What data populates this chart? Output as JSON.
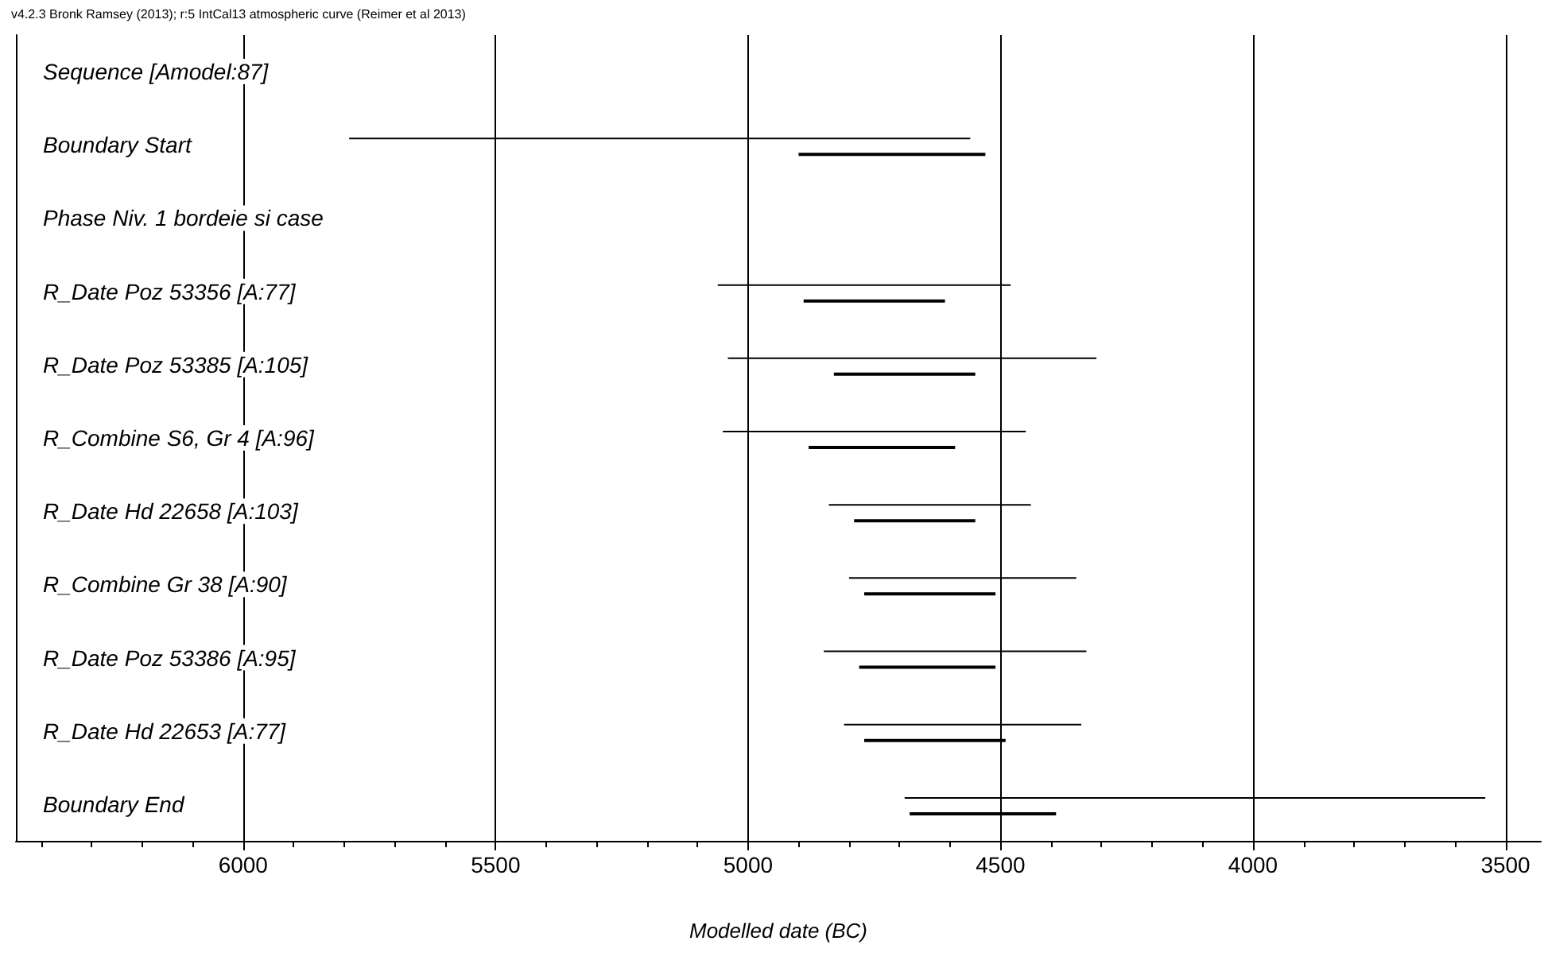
{
  "chart_data": {
    "type": "bar",
    "orientation": "horizontal",
    "annotations": [
      "v4.2.3 Bronk Ramsey (2013); r:5 IntCal13 atmospheric curve (Reimer et al 2013)"
    ],
    "xlabel": "Modelled date (BC)",
    "categories": [
      "Sequence [Amodel:87]",
      "Boundary Start",
      "Phase Niv. 1 bordeie si case",
      "R_Date Poz 53356 [A:77]",
      "R_Date Poz 53385 [A:105]",
      "R_Combine S6, Gr 4 [A:96]",
      "R_Date Hd 22658 [A:103]",
      "R_Combine Gr 38 [A:90]",
      "R_Date Poz 53386 [A:95]",
      "R_Date Hd 22653 [A:77]",
      "Boundary End"
    ],
    "series": [
      {
        "color": "#000000",
        "base": [
          null,
          4560,
          null,
          4480,
          4310,
          4450,
          4440,
          4350,
          4330,
          4340,
          3540
        ],
        "values": [
          null,
          1230,
          null,
          580,
          730,
          600,
          400,
          450,
          520,
          470,
          1150
        ]
      },
      {
        "color": "#000000",
        "base": [
          null,
          4530,
          null,
          4610,
          4550,
          4590,
          4550,
          4510,
          4510,
          4490,
          4390
        ],
        "values": [
          null,
          370,
          null,
          280,
          280,
          290,
          240,
          260,
          270,
          280,
          290
        ]
      }
    ],
    "xlim": [
      6450,
      3430
    ],
    "xticks": [
      {
        "value": 6400,
        "label": null
      },
      {
        "value": 6300,
        "label": null
      },
      {
        "value": 6200,
        "label": null
      },
      {
        "value": 6100,
        "label": null
      },
      6000,
      {
        "value": 5900,
        "label": null
      },
      {
        "value": 5800,
        "label": null
      },
      {
        "value": 5700,
        "label": null
      },
      {
        "value": 5600,
        "label": null
      },
      5500,
      {
        "value": 5400,
        "label": null
      },
      {
        "value": 5300,
        "label": null
      },
      {
        "value": 5200,
        "label": null
      },
      {
        "value": 5100,
        "label": null
      },
      5000,
      {
        "value": 4900,
        "label": null
      },
      {
        "value": 4800,
        "label": null
      },
      {
        "value": 4700,
        "label": null
      },
      {
        "value": 4600,
        "label": null
      },
      4500,
      {
        "value": 4400,
        "label": null
      },
      {
        "value": 4300,
        "label": null
      },
      {
        "value": 4200,
        "label": null
      },
      {
        "value": 4100,
        "label": null
      },
      4000,
      {
        "value": 3900,
        "label": null
      },
      {
        "value": 3800,
        "label": null
      },
      {
        "value": 3700,
        "label": null
      },
      {
        "value": 3600,
        "label": null
      },
      3500
    ],
    "grid": "x"
  }
}
